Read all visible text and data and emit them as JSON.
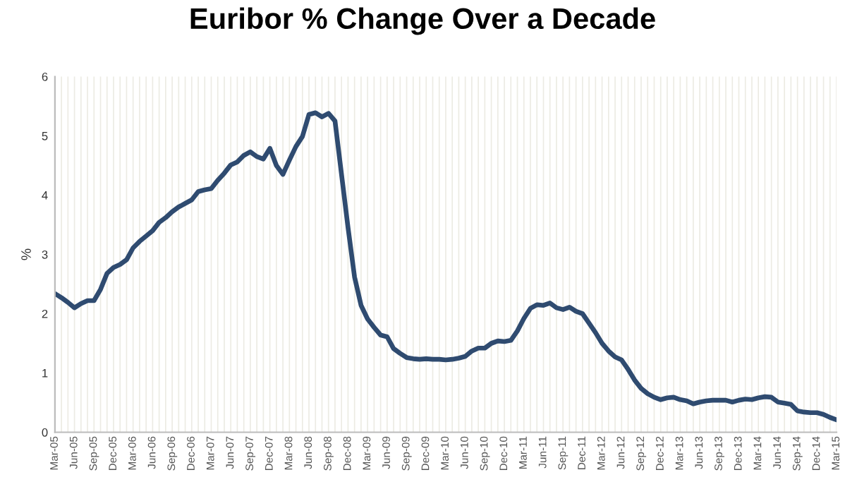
{
  "chart_data": {
    "type": "line",
    "title": "Euribor % Change Over a Decade",
    "ylabel": "%",
    "categories": [
      "Mar-05",
      null,
      null,
      "Jun-05",
      null,
      null,
      "Sep-05",
      null,
      null,
      "Dec-05",
      null,
      null,
      "Mar-06",
      null,
      null,
      "Jun-06",
      null,
      null,
      "Sep-06",
      null,
      null,
      "Dec-06",
      null,
      null,
      "Mar-07",
      null,
      null,
      "Jun-07",
      null,
      null,
      "Sep-07",
      null,
      null,
      "Dec-07",
      null,
      null,
      "Mar-08",
      null,
      null,
      "Jun-08",
      null,
      null,
      "Sep-08",
      null,
      null,
      "Dec-08",
      null,
      null,
      "Mar-09",
      null,
      null,
      "Jun-09",
      null,
      null,
      "Sep-09",
      null,
      null,
      "Dec-09",
      null,
      null,
      "Mar-10",
      null,
      null,
      "Jun-10",
      null,
      null,
      "Sep-10",
      null,
      null,
      "Dec-10",
      null,
      null,
      "Mar-11",
      null,
      null,
      "Jun-11",
      null,
      null,
      "Sep-11",
      null,
      null,
      "Dec-11",
      null,
      null,
      "Mar-12",
      null,
      null,
      "Jun-12",
      null,
      null,
      "Sep-12",
      null,
      null,
      "Dec-12",
      null,
      null,
      "Mar-13",
      null,
      null,
      "Jun-13",
      null,
      null,
      "Sep-13",
      null,
      null,
      "Dec-13",
      null,
      null,
      "Mar-14",
      null,
      null,
      "Jun-14",
      null,
      null,
      "Sep-14",
      null,
      null,
      "Dec-14",
      null,
      null,
      "Mar-15"
    ],
    "series": [
      {
        "color": "#2f4b70",
        "values": [
          2.34,
          2.27,
          2.19,
          2.1,
          2.17,
          2.22,
          2.22,
          2.41,
          2.68,
          2.78,
          2.83,
          2.91,
          3.11,
          3.22,
          3.31,
          3.4,
          3.54,
          3.62,
          3.72,
          3.8,
          3.86,
          3.92,
          4.06,
          4.09,
          4.11,
          4.25,
          4.37,
          4.51,
          4.56,
          4.67,
          4.73,
          4.65,
          4.61,
          4.79,
          4.5,
          4.35,
          4.59,
          4.82,
          4.99,
          5.36,
          5.39,
          5.32,
          5.38,
          5.25,
          4.35,
          3.45,
          2.62,
          2.14,
          1.91,
          1.77,
          1.64,
          1.61,
          1.41,
          1.33,
          1.26,
          1.24,
          1.23,
          1.24,
          1.23,
          1.23,
          1.22,
          1.23,
          1.25,
          1.28,
          1.37,
          1.42,
          1.42,
          1.5,
          1.54,
          1.53,
          1.55,
          1.71,
          1.92,
          2.09,
          2.15,
          2.14,
          2.18,
          2.1,
          2.07,
          2.11,
          2.04,
          2.0,
          1.84,
          1.68,
          1.5,
          1.37,
          1.27,
          1.22,
          1.06,
          0.88,
          0.74,
          0.65,
          0.59,
          0.55,
          0.58,
          0.59,
          0.55,
          0.53,
          0.48,
          0.51,
          0.53,
          0.54,
          0.54,
          0.54,
          0.51,
          0.54,
          0.56,
          0.55,
          0.58,
          0.6,
          0.59,
          0.51,
          0.49,
          0.47,
          0.36,
          0.34,
          0.33,
          0.33,
          0.3,
          0.25,
          0.21
        ]
      }
    ],
    "ylim": [
      0,
      6
    ],
    "yticks": [
      0,
      1,
      2,
      3,
      4,
      5,
      6
    ],
    "grid": "x",
    "marker": "none",
    "line_style": "solid"
  }
}
